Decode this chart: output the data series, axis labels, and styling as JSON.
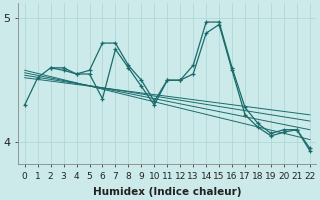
{
  "xlabel": "Humidex (Indice chaleur)",
  "bg_color": "#cceaea",
  "line_color": "#1a6b6b",
  "grid_color": "#aad4d4",
  "xlim": [
    -0.5,
    22.5
  ],
  "ylim": [
    3.82,
    5.12
  ],
  "yticks": [
    4,
    5
  ],
  "xticks": [
    0,
    1,
    2,
    3,
    4,
    5,
    6,
    7,
    8,
    9,
    10,
    11,
    12,
    13,
    14,
    15,
    16,
    17,
    18,
    19,
    20,
    21,
    22
  ],
  "series1_x": [
    0,
    1,
    2,
    3,
    4,
    5,
    6,
    7,
    8,
    9,
    10,
    11,
    12,
    13,
    14,
    15,
    16,
    17,
    18,
    19,
    20,
    21,
    22
  ],
  "series1_y": [
    4.3,
    4.52,
    4.6,
    4.6,
    4.55,
    4.58,
    4.8,
    4.8,
    4.62,
    4.5,
    4.33,
    4.5,
    4.5,
    4.62,
    4.97,
    4.97,
    4.6,
    4.28,
    4.15,
    4.07,
    4.1,
    4.1,
    3.95
  ],
  "series2_x": [
    2,
    3,
    4,
    5,
    6,
    7,
    8,
    9,
    10,
    11,
    12,
    13,
    14,
    15,
    16,
    17,
    18,
    19,
    20,
    21,
    22
  ],
  "series2_y": [
    4.6,
    4.58,
    4.55,
    4.55,
    4.35,
    4.75,
    4.6,
    4.45,
    4.3,
    4.5,
    4.5,
    4.55,
    4.88,
    4.95,
    4.58,
    4.22,
    4.12,
    4.05,
    4.08,
    4.1,
    3.93
  ],
  "lines": [
    {
      "x": [
        0,
        22
      ],
      "y": [
        4.58,
        4.02
      ]
    },
    {
      "x": [
        0,
        22
      ],
      "y": [
        4.56,
        4.1
      ]
    },
    {
      "x": [
        0,
        22
      ],
      "y": [
        4.54,
        4.17
      ]
    },
    {
      "x": [
        0,
        22
      ],
      "y": [
        4.52,
        4.22
      ]
    }
  ]
}
